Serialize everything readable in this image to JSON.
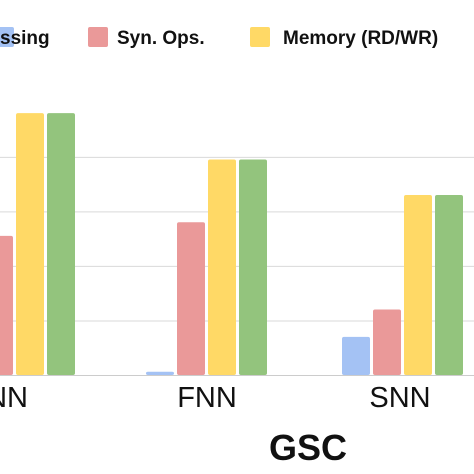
{
  "chart_data": {
    "type": "bar",
    "title": "GSC",
    "xlabel": "GSC",
    "ylabel": "",
    "categories": [
      "NN",
      "FNN",
      "SNN"
    ],
    "series": [
      {
        "name": "ssing",
        "color": "#a4c2f4",
        "values": [
          0,
          0.12,
          1.4
        ]
      },
      {
        "name": "Syn. Ops.",
        "color": "#ea9999",
        "values": [
          5.1,
          5.6,
          2.4
        ]
      },
      {
        "name": "Memory (RD/WR)",
        "color": "#ffd966",
        "values": [
          9.6,
          7.9,
          6.6
        ]
      },
      {
        "name": "",
        "color": "#93c47d",
        "values": [
          9.6,
          7.9,
          6.6
        ]
      }
    ],
    "ylim": [
      0,
      11
    ],
    "grid": true,
    "legend_position": "top"
  }
}
